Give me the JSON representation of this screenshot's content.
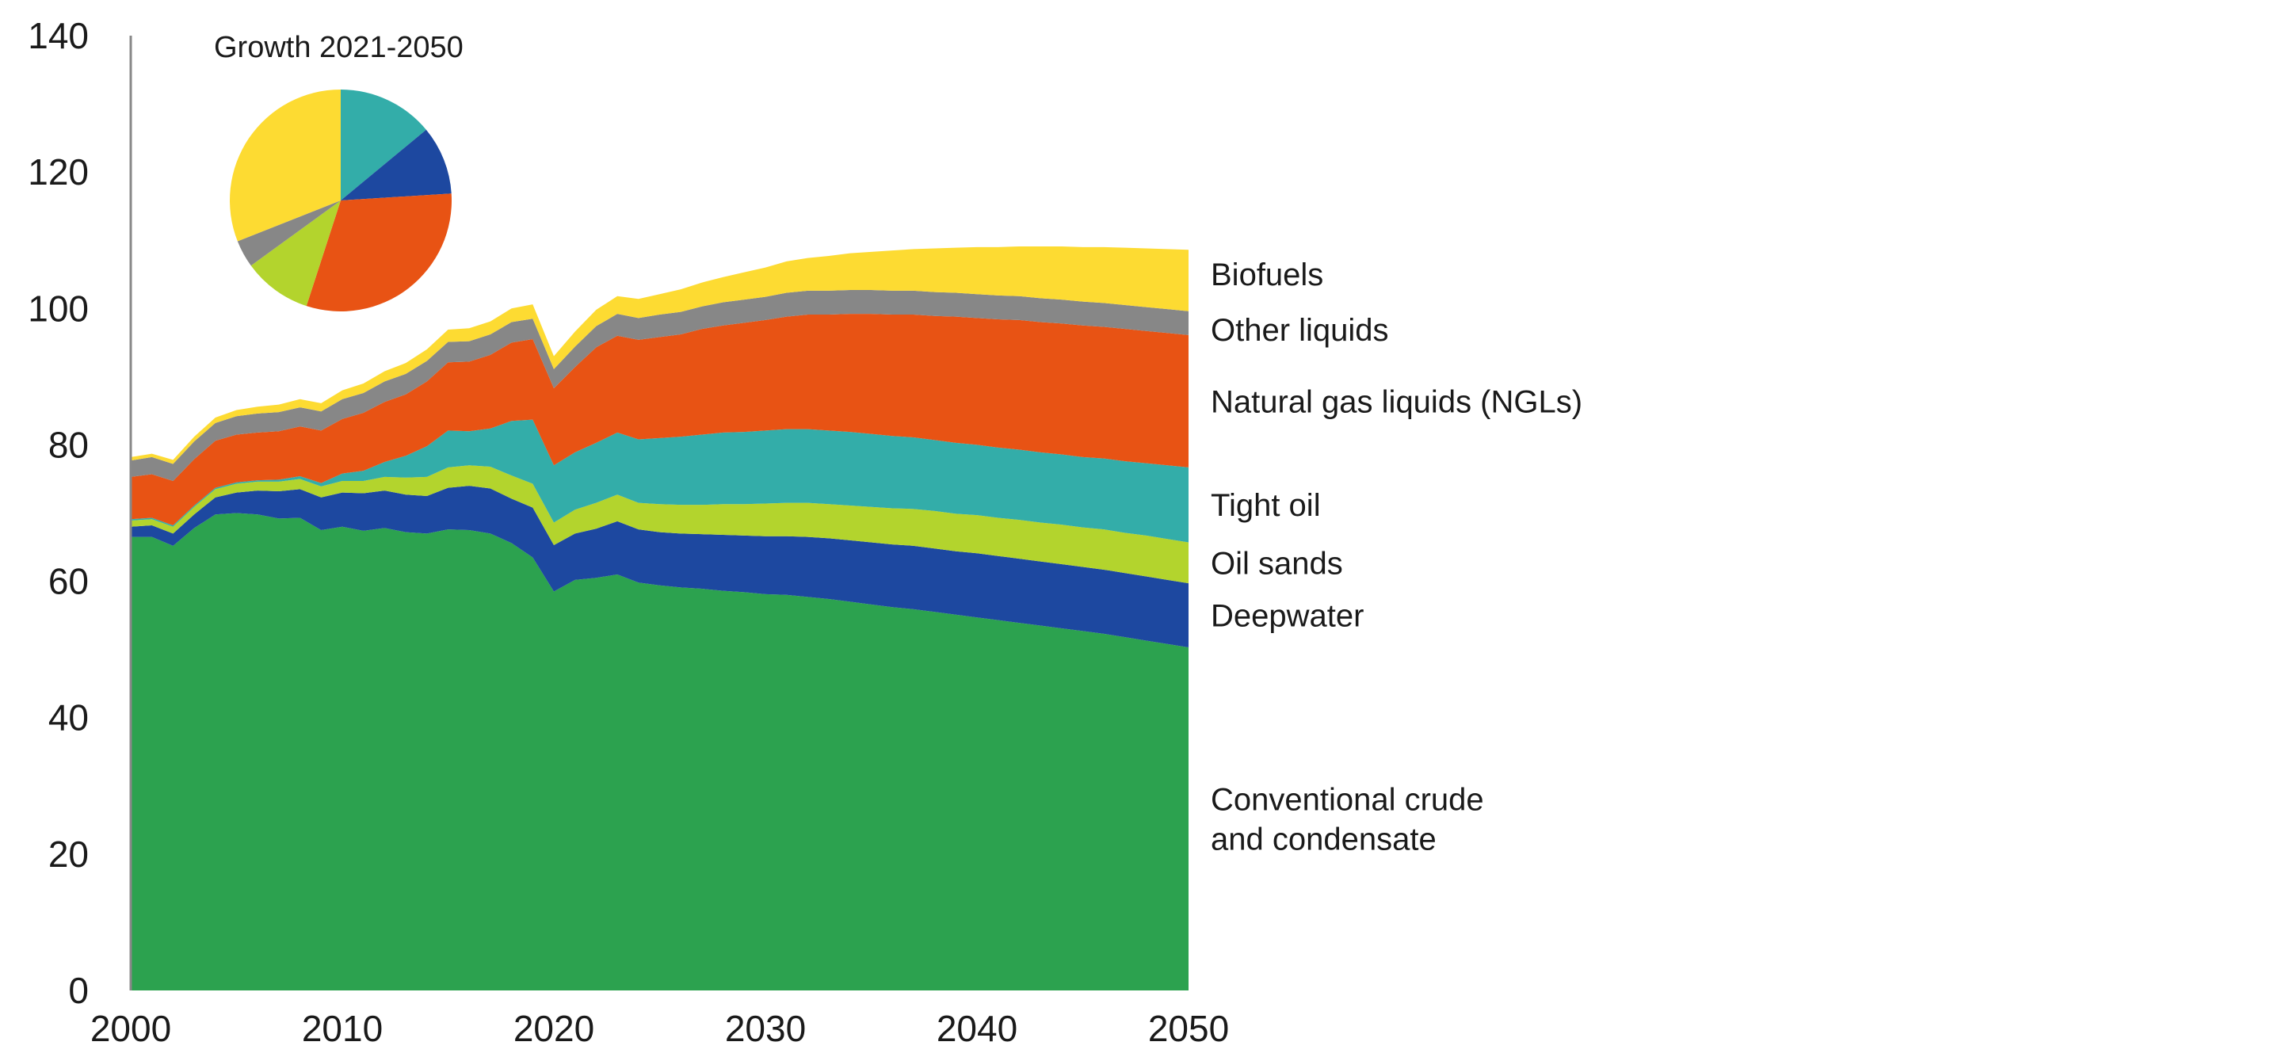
{
  "chart_data": {
    "type": "area",
    "stacked": true,
    "x": [
      2000,
      2001,
      2002,
      2003,
      2004,
      2005,
      2006,
      2007,
      2008,
      2009,
      2010,
      2011,
      2012,
      2013,
      2014,
      2015,
      2016,
      2017,
      2018,
      2019,
      2020,
      2021,
      2022,
      2023,
      2024,
      2025,
      2026,
      2027,
      2028,
      2029,
      2030,
      2031,
      2032,
      2033,
      2034,
      2035,
      2036,
      2037,
      2038,
      2039,
      2040,
      2041,
      2042,
      2043,
      2044,
      2045,
      2046,
      2047,
      2048,
      2049,
      2050
    ],
    "xlim": [
      2000,
      2050
    ],
    "ylim": [
      0,
      140
    ],
    "x_ticks": [
      "2000",
      "2010",
      "2020",
      "2030",
      "2040",
      "2050"
    ],
    "y_ticks": [
      "0",
      "20",
      "40",
      "60",
      "80",
      "100",
      "120",
      "140"
    ],
    "grid": false,
    "series": [
      {
        "name": "Conventional crude\nand condensate",
        "color": "#2ca24f",
        "values": [
          66.5,
          66.5,
          65.2,
          67.8,
          69.8,
          70.0,
          69.8,
          69.2,
          69.3,
          67.5,
          68.0,
          67.4,
          67.8,
          67.2,
          67.0,
          67.6,
          67.5,
          67.0,
          65.6,
          63.5,
          58.5,
          60.2,
          60.5,
          61.0,
          59.8,
          59.4,
          59.1,
          58.9,
          58.6,
          58.4,
          58.1,
          58.0,
          57.7,
          57.4,
          57.0,
          56.6,
          56.2,
          55.9,
          55.5,
          55.1,
          54.7,
          54.3,
          53.9,
          53.5,
          53.1,
          52.7,
          52.3,
          51.8,
          51.3,
          50.8,
          50.3
        ]
      },
      {
        "name": "Deepwater",
        "color": "#1d48a0",
        "values": [
          1.5,
          1.7,
          1.8,
          2.0,
          2.5,
          3.0,
          3.5,
          4.0,
          4.2,
          4.8,
          5.0,
          5.5,
          5.5,
          5.5,
          5.5,
          6.1,
          6.5,
          6.6,
          6.5,
          7.3,
          6.8,
          6.8,
          7.2,
          7.8,
          7.8,
          7.8,
          7.9,
          8.0,
          8.2,
          8.3,
          8.5,
          8.6,
          8.8,
          8.9,
          9.0,
          9.1,
          9.2,
          9.3,
          9.3,
          9.3,
          9.4,
          9.4,
          9.4,
          9.4,
          9.4,
          9.4,
          9.4,
          9.4,
          9.4,
          9.4,
          9.4
        ]
      },
      {
        "name": "Oil sands",
        "color": "#b3d42d",
        "values": [
          0.9,
          0.9,
          1.0,
          1.1,
          1.2,
          1.3,
          1.3,
          1.4,
          1.5,
          1.6,
          1.7,
          1.8,
          2.0,
          2.5,
          2.8,
          3.0,
          3.0,
          3.2,
          3.4,
          3.5,
          3.3,
          3.5,
          3.8,
          3.9,
          3.9,
          4.1,
          4.2,
          4.3,
          4.5,
          4.6,
          4.8,
          4.9,
          5.0,
          5.0,
          5.1,
          5.2,
          5.3,
          5.4,
          5.5,
          5.5,
          5.6,
          5.6,
          5.7,
          5.7,
          5.8,
          5.8,
          5.9,
          5.9,
          6.0,
          6.0,
          6.0
        ]
      },
      {
        "name": "Tight oil",
        "color": "#33ada9",
        "values": [
          0.2,
          0.2,
          0.2,
          0.2,
          0.2,
          0.2,
          0.2,
          0.3,
          0.4,
          0.5,
          1.1,
          1.5,
          2.2,
          3.2,
          4.5,
          5.4,
          5.0,
          5.6,
          8.0,
          9.4,
          8.4,
          8.4,
          8.8,
          9.1,
          9.3,
          9.7,
          10.0,
          10.3,
          10.5,
          10.6,
          10.7,
          10.8,
          10.8,
          10.8,
          10.8,
          10.7,
          10.6,
          10.5,
          10.4,
          10.4,
          10.3,
          10.3,
          10.3,
          10.3,
          10.3,
          10.3,
          10.4,
          10.5,
          10.6,
          10.8,
          11.0
        ]
      },
      {
        "name": "Natural gas liquids (NGLs)",
        "color": "#e85314",
        "values": [
          6.2,
          6.4,
          6.5,
          6.8,
          6.9,
          7.0,
          7.0,
          7.1,
          7.3,
          7.7,
          8.0,
          8.5,
          8.8,
          9.0,
          9.5,
          10.0,
          10.2,
          10.8,
          11.5,
          11.8,
          11.3,
          12.5,
          14.0,
          14.2,
          14.6,
          14.8,
          15.0,
          15.5,
          15.7,
          16.0,
          16.2,
          16.5,
          16.8,
          17.0,
          17.3,
          17.6,
          17.8,
          18.0,
          18.2,
          18.5,
          18.6,
          18.8,
          19.0,
          19.1,
          19.2,
          19.3,
          19.3,
          19.4,
          19.4,
          19.4,
          19.4
        ]
      },
      {
        "name": "Other liquids",
        "color": "#878787",
        "values": [
          2.4,
          2.5,
          2.5,
          2.6,
          2.6,
          2.7,
          2.8,
          2.8,
          2.8,
          2.8,
          2.9,
          2.9,
          3.0,
          3.0,
          3.0,
          3.0,
          3.0,
          3.0,
          3.0,
          3.0,
          2.8,
          3.0,
          3.1,
          3.2,
          3.2,
          3.3,
          3.3,
          3.3,
          3.4,
          3.4,
          3.4,
          3.5,
          3.5,
          3.5,
          3.5,
          3.5,
          3.5,
          3.5,
          3.5,
          3.5,
          3.5,
          3.5,
          3.5,
          3.5,
          3.5,
          3.5,
          3.5,
          3.5,
          3.5,
          3.5,
          3.5
        ]
      },
      {
        "name": "Biofuels",
        "color": "#fddb32",
        "values": [
          0.5,
          0.5,
          0.6,
          0.7,
          0.8,
          0.9,
          1.0,
          1.1,
          1.2,
          1.2,
          1.3,
          1.4,
          1.5,
          1.6,
          1.7,
          1.8,
          1.9,
          1.9,
          2.0,
          2.1,
          1.9,
          2.2,
          2.4,
          2.6,
          2.8,
          3.0,
          3.3,
          3.5,
          3.7,
          4.0,
          4.3,
          4.6,
          4.8,
          5.1,
          5.4,
          5.6,
          5.9,
          6.1,
          6.4,
          6.6,
          6.9,
          7.1,
          7.3,
          7.6,
          7.8,
          8.0,
          8.2,
          8.4,
          8.6,
          8.8,
          9.0
        ]
      }
    ],
    "inset_pie": {
      "title": "Growth 2021-2050",
      "slices": [
        {
          "name": "Tight oil",
          "value": 14,
          "color": "#33ada9"
        },
        {
          "name": "Deepwater",
          "value": 10,
          "color": "#1d48a0"
        },
        {
          "name": "Natural gas liquids (NGLs)",
          "value": 31,
          "color": "#e85314"
        },
        {
          "name": "Oil sands",
          "value": 10,
          "color": "#b3d42d"
        },
        {
          "name": "Other liquids",
          "value": 4,
          "color": "#878787"
        },
        {
          "name": "Biofuels",
          "value": 31,
          "color": "#fddb32"
        }
      ]
    }
  }
}
